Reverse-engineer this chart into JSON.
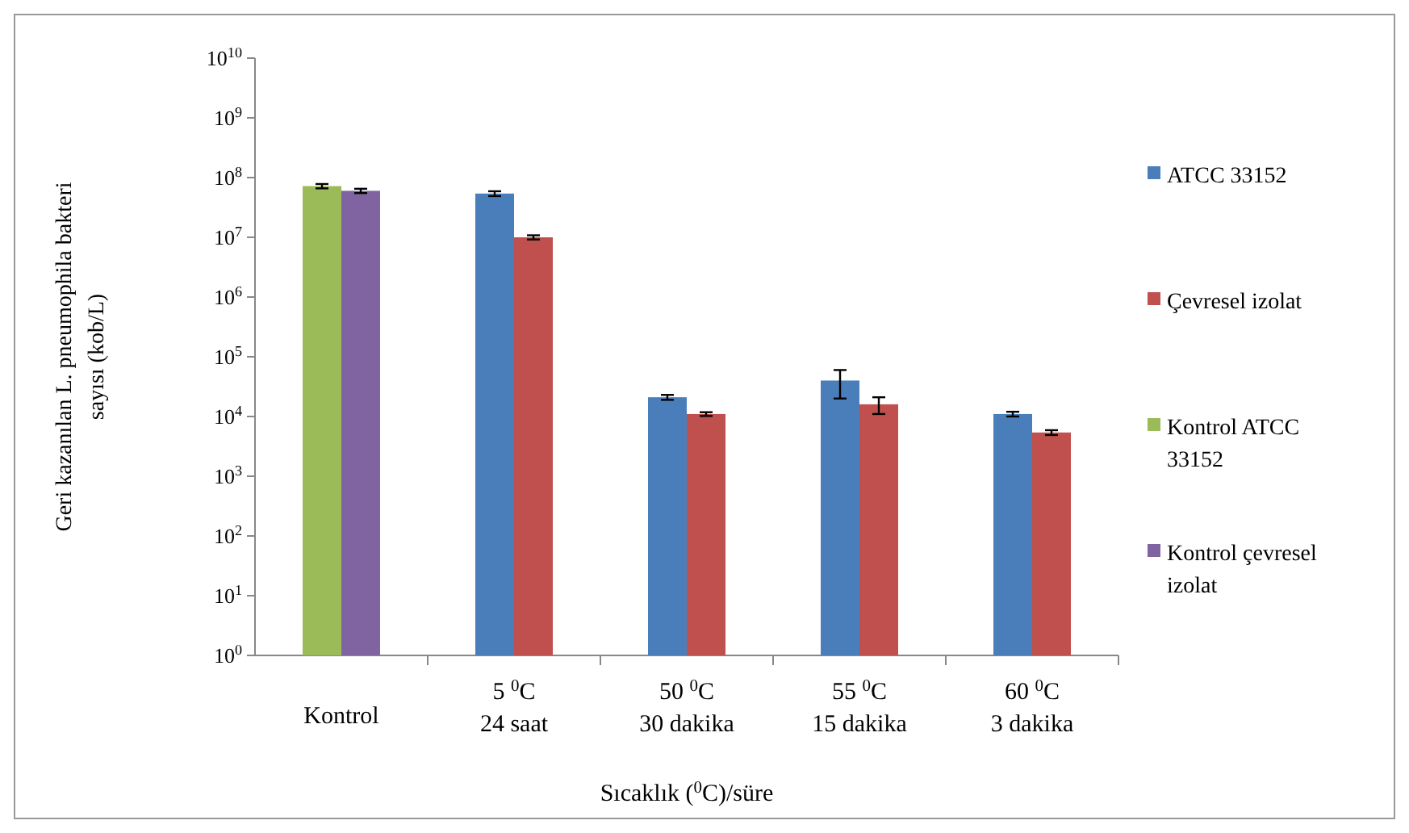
{
  "chart_data": {
    "type": "bar",
    "xlabel": "Sıcaklık ($^{0}$C)/süre",
    "ylabel": "Geri kazanılan L. pneumophila bakteri sayısı (kob/L)",
    "categories": [
      "Kontrol",
      "5 $^{0}$C\n24 saat",
      "50 $^{0}$C\n30 dakika",
      "55 $^{0}$C\n15 dakika",
      "60 $^{0}$C\n3 dakika"
    ],
    "series": [
      {
        "name": "ATCC 33152",
        "color": "#4a7ebb",
        "values": [
          null,
          54000000,
          21000,
          40000,
          11000
        ],
        "errors": [
          null,
          5000000,
          2000,
          20000,
          1000
        ]
      },
      {
        "name": "Çevresel izolat",
        "color": "#c0504d",
        "values": [
          null,
          10000000,
          11000,
          16000,
          5400
        ],
        "errors": [
          null,
          800000,
          800,
          5000,
          500
        ]
      },
      {
        "name": "Kontrol ATCC 33152",
        "color": "#9bbb59",
        "values": [
          72000000,
          null,
          null,
          null,
          null
        ],
        "errors": [
          6000000,
          null,
          null,
          null,
          null
        ]
      },
      {
        "name": "Kontrol çevresel izolat",
        "color": "#8064a2",
        "values": [
          60000000,
          null,
          null,
          null,
          null
        ],
        "errors": [
          5000000,
          null,
          null,
          null,
          null
        ]
      }
    ],
    "log": true,
    "ylim": [
      1,
      10000000000
    ],
    "yticks": [
      {
        "value": 1,
        "label": "10$^{0}$"
      },
      {
        "value": 10,
        "label": "10$^{1}$"
      },
      {
        "value": 100,
        "label": "10$^{2}$"
      },
      {
        "value": 1000,
        "label": "10$^{3}$"
      },
      {
        "value": 10000,
        "label": "10$^{4}$"
      },
      {
        "value": 100000,
        "label": "10$^{5}$"
      },
      {
        "value": 1000000,
        "label": "10$^{6}$"
      },
      {
        "value": 10000000,
        "label": "10$^{7}$"
      },
      {
        "value": 100000000,
        "label": "10$^{8}$"
      },
      {
        "value": 1000000000,
        "label": "10$^{9}$"
      },
      {
        "value": 10000000000,
        "label": "10$^{10}$"
      }
    ],
    "grid": false,
    "legend": "right"
  }
}
